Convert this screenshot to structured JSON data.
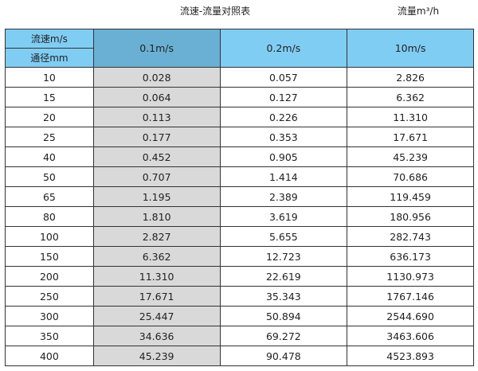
{
  "title": "流速-流量对照表",
  "unit_label": "流量m³/h",
  "header": {
    "velocity_label": "流速m/s",
    "diameter_label": "通径mm",
    "columns": [
      "0.1m/s",
      "0.2m/s",
      "10m/s"
    ]
  },
  "colors": {
    "header": "#80cdf4",
    "header_highlight": "#6ab0d4",
    "highlight_column": "#d9d9d9"
  },
  "rows": [
    {
      "dn": "10",
      "v": [
        "0.028",
        "0.057",
        "2.826"
      ]
    },
    {
      "dn": "15",
      "v": [
        "0.064",
        "0.127",
        "6.362"
      ]
    },
    {
      "dn": "20",
      "v": [
        "0.113",
        "0.226",
        "11.310"
      ]
    },
    {
      "dn": "25",
      "v": [
        "0.177",
        "0.353",
        "17.671"
      ]
    },
    {
      "dn": "40",
      "v": [
        "0.452",
        "0.905",
        "45.239"
      ]
    },
    {
      "dn": "50",
      "v": [
        "0.707",
        "1.414",
        "70.686"
      ]
    },
    {
      "dn": "65",
      "v": [
        "1.195",
        "2.389",
        "119.459"
      ]
    },
    {
      "dn": "80",
      "v": [
        "1.810",
        "3.619",
        "180.956"
      ]
    },
    {
      "dn": "100",
      "v": [
        "2.827",
        "5.655",
        "282.743"
      ]
    },
    {
      "dn": "150",
      "v": [
        "6.362",
        "12.723",
        "636.173"
      ]
    },
    {
      "dn": "200",
      "v": [
        "11.310",
        "22.619",
        "1130.973"
      ]
    },
    {
      "dn": "250",
      "v": [
        "17.671",
        "35.343",
        "1767.146"
      ]
    },
    {
      "dn": "300",
      "v": [
        "25.447",
        "50.894",
        "2544.690"
      ]
    },
    {
      "dn": "350",
      "v": [
        "34.636",
        "69.272",
        "3463.606"
      ]
    },
    {
      "dn": "400",
      "v": [
        "45.239",
        "90.478",
        "4523.893"
      ]
    }
  ]
}
